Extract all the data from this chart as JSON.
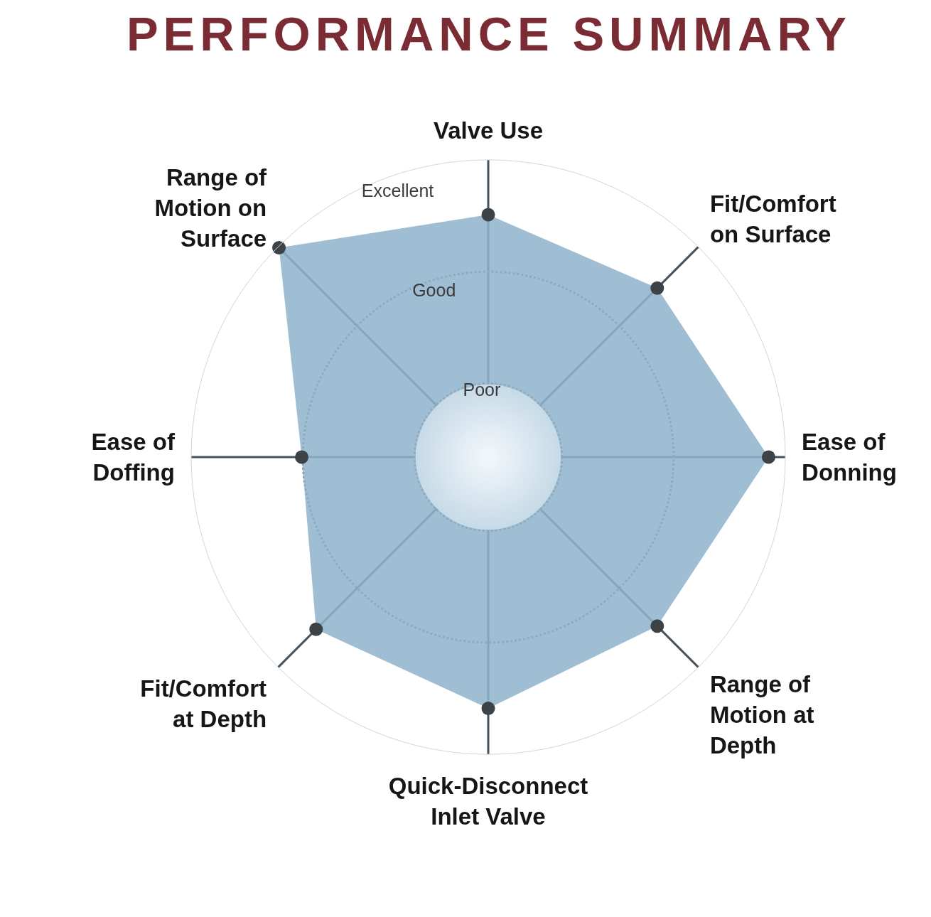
{
  "chart_data": {
    "type": "radar",
    "title": "PERFORMANCE SUMMARY",
    "categories": [
      "Valve Use",
      "Fit/Comfort on Surface",
      "Ease of Donning",
      "Range of Motion at Depth",
      "Quick-Disconnect Inlet Valve",
      "Fit/Comfort at Depth",
      "Ease of Doffing",
      "Range of Motion on Surface"
    ],
    "series": [
      {
        "color": "#8fb3cc",
        "values": [
          2.51,
          2.48,
          2.85,
          2.48,
          2.59,
          2.52,
          2.01,
          2.99
        ]
      }
    ],
    "ylim": [
      0.34,
      3
    ],
    "yticks": [
      {
        "value": 1,
        "label": "Poor"
      },
      {
        "value": 2,
        "label": "Good"
      },
      {
        "value": 3,
        "label": "Excellent"
      }
    ],
    "marker": "circle",
    "grid": true
  }
}
